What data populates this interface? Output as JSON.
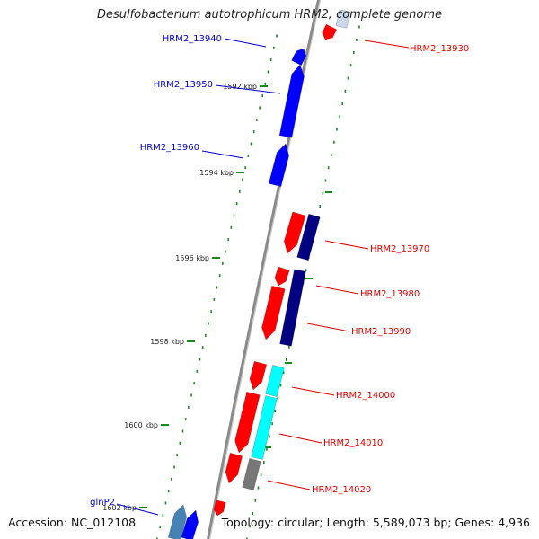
{
  "title": "Desulfobacterium autotrophicum HRM2, complete genome",
  "accession": "Accession: NC_012108",
  "stats": "Topology: circular; Length: 5,589,073 bp; Genes: 4,936",
  "colors": {
    "backbone": "#8a8a8a",
    "tick": "#1a8a1a",
    "plus_label": "#0000cc",
    "minus_label": "#dd0000",
    "red": "#ff0000",
    "blue": "#0000ff",
    "navy": "#000080",
    "cyan": "#00ffff",
    "gray": "#777777",
    "steel": "#4682b4"
  },
  "kbp_labels": [
    "1592 kbp",
    "1594 kbp",
    "1596 kbp",
    "1598 kbp",
    "1600 kbp",
    "1602 kbp"
  ],
  "gene_labels": [
    "HRM2_13930",
    "HRM2_13940",
    "HRM2_13950",
    "HRM2_13960",
    "HRM2_13970",
    "HRM2_13980",
    "HRM2_13990",
    "HRM2_14000",
    "HRM2_14010",
    "HRM2_14020",
    "glnP2"
  ]
}
